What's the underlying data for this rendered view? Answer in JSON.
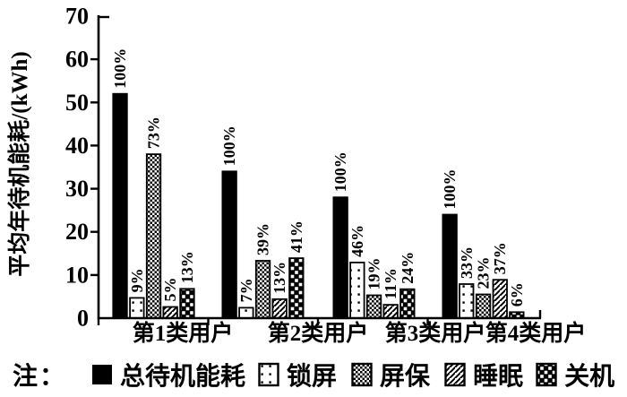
{
  "figure": {
    "background": "#ffffff",
    "foreground": "#000000"
  },
  "chart_data": {
    "type": "bar",
    "title": "",
    "ylabel": "平均年待机能耗/(kWh)",
    "xlabel": "",
    "ylim": [
      0,
      70
    ],
    "yticks": [
      0,
      10,
      20,
      30,
      40,
      50,
      60,
      70
    ],
    "grid": false,
    "legend_position": "bottom",
    "legend_note": "注：",
    "categories": [
      "第1类用户",
      "第2类用户",
      "第3类用户",
      "第4类用户"
    ],
    "series": [
      {
        "name": "总待机能耗",
        "pattern": "solid-black",
        "values": [
          52,
          34,
          28,
          24
        ],
        "percent_labels": [
          "100%",
          "100%",
          "100%",
          "100%"
        ]
      },
      {
        "name": "锁屏",
        "pattern": "dots",
        "values": [
          4.7,
          2.4,
          12.9,
          7.9
        ],
        "percent_labels": [
          "9%",
          "7%",
          "46%",
          "33%"
        ]
      },
      {
        "name": "屏保",
        "pattern": "fine-checker",
        "values": [
          38,
          13.3,
          5.3,
          5.5
        ],
        "percent_labels": [
          "73%",
          "39%",
          "19%",
          "23%"
        ]
      },
      {
        "name": "睡眠",
        "pattern": "diagonal-hatch",
        "values": [
          2.6,
          4.4,
          3.1,
          8.9
        ],
        "percent_labels": [
          "5%",
          "13%",
          "11%",
          "37%"
        ]
      },
      {
        "name": "关机",
        "pattern": "coarse-checker",
        "values": [
          6.8,
          13.9,
          6.7,
          1.4
        ],
        "percent_labels": [
          "13%",
          "41%",
          "24%",
          "6%"
        ]
      }
    ]
  }
}
